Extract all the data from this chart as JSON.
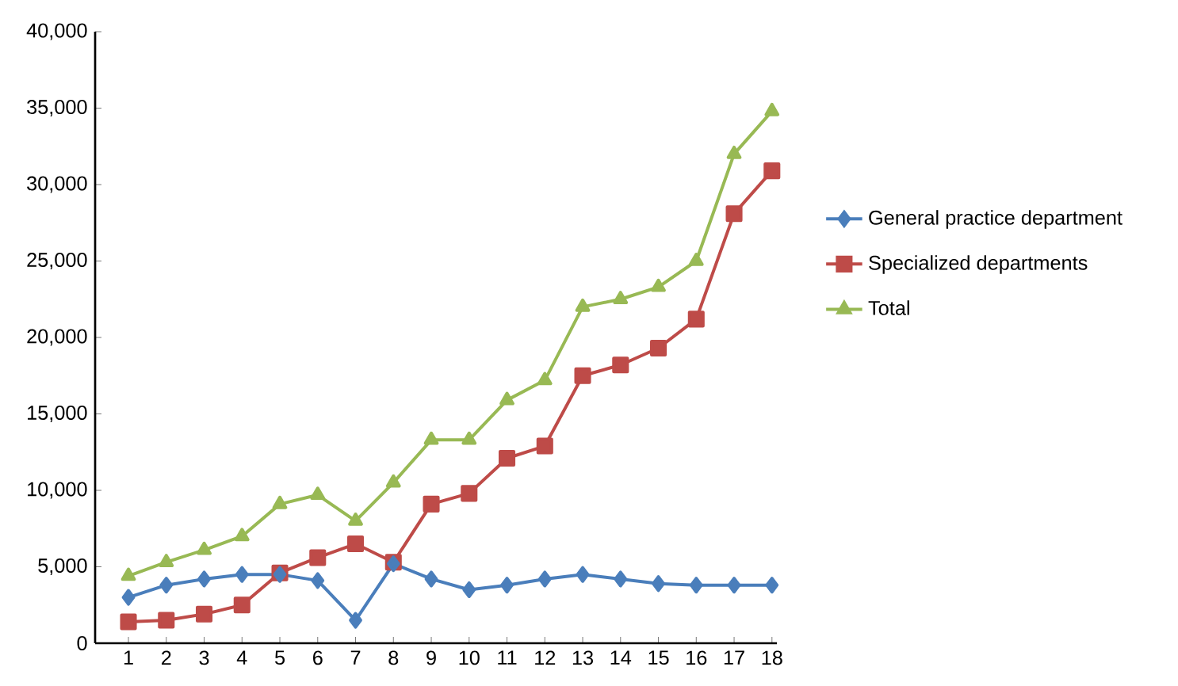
{
  "chart_data": {
    "type": "line",
    "categories": [
      "1",
      "2",
      "3",
      "4",
      "5",
      "6",
      "7",
      "8",
      "9",
      "10",
      "11",
      "12",
      "13",
      "14",
      "15",
      "16",
      "17",
      "18"
    ],
    "series": [
      {
        "name": "General practice department",
        "color": "#4a7ebb",
        "marker": "diamond",
        "values": [
          3000,
          3800,
          4200,
          4500,
          4500,
          4100,
          1500,
          5200,
          4200,
          3500,
          3800,
          4200,
          4500,
          4200,
          3900,
          3800,
          3800,
          3800
        ]
      },
      {
        "name": "Specialized departments",
        "color": "#be4b48",
        "marker": "square",
        "values": [
          1400,
          1500,
          1900,
          2500,
          4600,
          5600,
          6500,
          5300,
          9100,
          9800,
          12100,
          12900,
          17500,
          18200,
          19300,
          21200,
          28100,
          30900
        ]
      },
      {
        "name": "Total",
        "color": "#98b954",
        "marker": "triangle",
        "values": [
          4400,
          5300,
          6100,
          7000,
          9100,
          9700,
          8000,
          10500,
          13300,
          13300,
          15900,
          17200,
          22000,
          22500,
          23300,
          25000,
          32000,
          34800
        ]
      }
    ],
    "ylim": [
      0,
      40000
    ],
    "yticks": [
      0,
      {
        "value": 5000,
        "label": "5,000"
      },
      {
        "value": 10000,
        "label": "10,000"
      },
      {
        "value": 15000,
        "label": "15,000"
      },
      {
        "value": 20000,
        "label": "20,000"
      },
      {
        "value": 25000,
        "label": "25,000"
      },
      {
        "value": 30000,
        "label": "30,000"
      },
      {
        "value": 35000,
        "label": "35,000"
      },
      {
        "value": 40000,
        "label": "40,000"
      }
    ],
    "grid": false,
    "legend": "right",
    "line_style": "solid"
  }
}
